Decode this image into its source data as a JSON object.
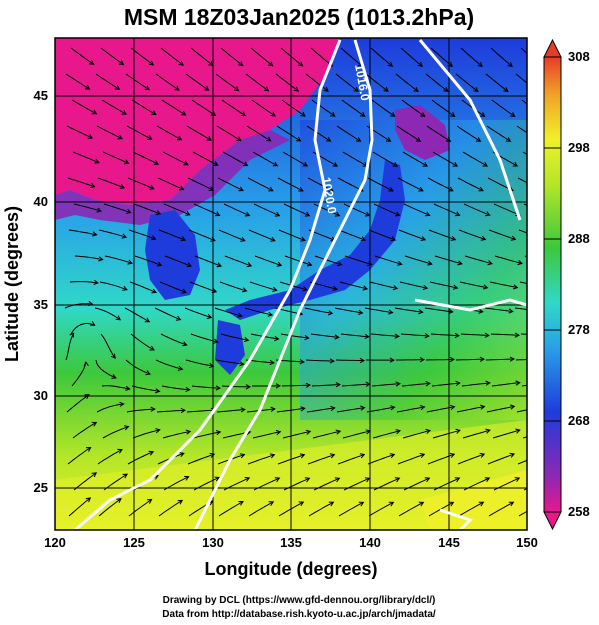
{
  "title": "MSM 18Z03Jan2025 (1013.2hPa)",
  "xlabel": "Longitude (degrees)",
  "ylabel": "Latitude  (degrees)",
  "x_ticks": [
    "120",
    "125",
    "130",
    "135",
    "140",
    "145",
    "150"
  ],
  "y_ticks": [
    "25",
    "30",
    "35",
    "40",
    "45"
  ],
  "colorbar": {
    "ticks": [
      "308",
      "298",
      "288",
      "278",
      "268",
      "258"
    ],
    "range": [
      258,
      308
    ]
  },
  "contours": [
    {
      "label": "1016.0"
    },
    {
      "label": "1020.0"
    }
  ],
  "credit_line1": "Drawing by DCL (https://www.gfd-dennou.org/library/dcl/)",
  "credit_line2": "Data from http://database.rish.kyoto-u.ac.jp/arch/jmadata/",
  "colors": {
    "magenta": "#e8188c",
    "purple": "#8c28b4",
    "blue": "#1e3cdc",
    "lightblue": "#28a0e8",
    "cyan": "#30d8c8",
    "green": "#3cc83c",
    "yellowgreen": "#b4e628",
    "yellow": "#f0f028",
    "orange": "#f0a028",
    "red": "#e83c28"
  },
  "chart_data": {
    "type": "heatmap",
    "title": "MSM 18Z03Jan2025 (1013.2hPa)",
    "xlabel": "Longitude (degrees)",
    "ylabel": "Latitude  (degrees)",
    "xlim": [
      120,
      150
    ],
    "ylim": [
      22.5,
      47.5
    ],
    "colorbar_range": [
      258,
      308
    ]
  }
}
